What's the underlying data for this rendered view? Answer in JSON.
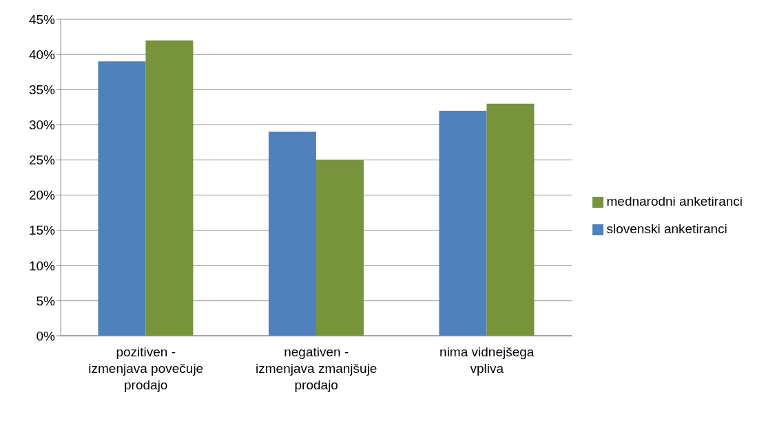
{
  "chart_data": {
    "type": "bar",
    "categories": [
      "pozitiven - izmenjava povečuje prodajo",
      "negativen - izmenjava zmanjšuje prodajo",
      "nima vidnejšega vpliva"
    ],
    "series": [
      {
        "name": "slovenski anketiranci",
        "color": "#4f81bd",
        "values": [
          39,
          29,
          32
        ]
      },
      {
        "name": "mednarodni anketiranci",
        "color": "#77933c",
        "values": [
          42,
          25,
          33
        ]
      }
    ],
    "ylim": [
      0,
      45
    ],
    "yticks": [
      {
        "value": 0,
        "label": "0%"
      },
      {
        "value": 5,
        "label": "5%"
      },
      {
        "value": 10,
        "label": "10%"
      },
      {
        "value": 15,
        "label": "15%"
      },
      {
        "value": 20,
        "label": "20%"
      },
      {
        "value": 25,
        "label": "25%"
      },
      {
        "value": 30,
        "label": "30%"
      },
      {
        "value": 35,
        "label": "35%"
      },
      {
        "value": 40,
        "label": "40%"
      },
      {
        "value": 45,
        "label": "45%"
      }
    ],
    "grid": "y",
    "legend": "right"
  }
}
